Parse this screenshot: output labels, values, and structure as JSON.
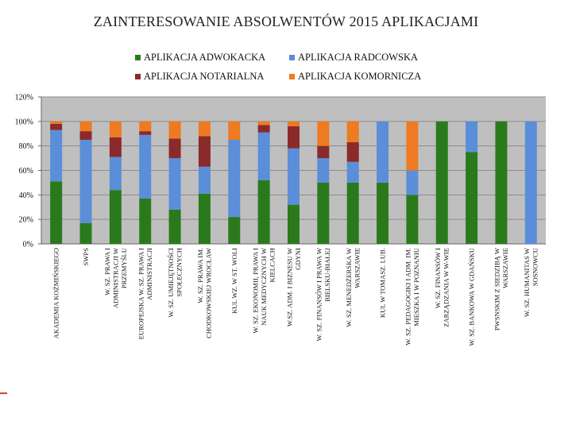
{
  "chart_data": {
    "type": "stacked-bar",
    "title": "ZAINTERESOWANIE ABSOLWENTÓW 2015 APLIKACJAMI",
    "ylim": [
      0,
      120
    ],
    "yticks": [
      "0%",
      "20%",
      "40%",
      "60%",
      "80%",
      "100%",
      "120%"
    ],
    "legend_position": "top",
    "series": [
      {
        "name": "APLIKACJA ADWOKACKA",
        "color": "#2a7a1c",
        "values": [
          51,
          17,
          44,
          37,
          28,
          41,
          22,
          52,
          32,
          50,
          50,
          50,
          40,
          100,
          75,
          100,
          0
        ]
      },
      {
        "name": "APLIKACJA RADCOWSKA",
        "color": "#5b8ed8",
        "values": [
          42,
          68,
          27,
          52,
          42,
          22,
          63,
          39,
          46,
          20,
          17,
          50,
          20,
          0,
          25,
          0,
          100
        ]
      },
      {
        "name": "APLIKACJA NOTARIALNA",
        "color": "#8b2a2a",
        "values": [
          5,
          7,
          16,
          3,
          16,
          25,
          0,
          6,
          18,
          10,
          16,
          0,
          0,
          0,
          0,
          0,
          0
        ]
      },
      {
        "name": "APLIKACJA KOMORNICZA",
        "color": "#ee7a22",
        "values": [
          2,
          8,
          13,
          8,
          14,
          12,
          15,
          3,
          4,
          20,
          17,
          0,
          40,
          0,
          0,
          0,
          0
        ]
      }
    ],
    "categories": [
      [
        "AKADEMIA KOŹMIŃSKIEGO"
      ],
      [
        "SWPS"
      ],
      [
        "W. SZ. PRAWA I",
        "ADMINISTRACJI W",
        "PRZEMYŚLU"
      ],
      [
        "EUROPEJSKA W. SZ. PRAWA I",
        "ADMINISTRACJI"
      ],
      [
        "W. SZ. UMIEJĘTNOŚCI",
        "SPOŁECZNYCH"
      ],
      [
        "W. SZ. PRAWA IM.",
        "CHODKOWSKIEJ WROCŁAW"
      ],
      [
        "KUL WZ. W ST. WOLI"
      ],
      [
        "W. SZ. EKONOMII, PRAWA I",
        "NAUK MEDYCZNYCH W",
        "KIELCACH"
      ],
      [
        "W.SZ. ADM. I BIZNESU W",
        "GDYNI"
      ],
      [
        "W. SZ. FINANSÓW I PRAWA W",
        "BIELSKU-BIAŁEJ"
      ],
      [
        "W. SZ. MENEDŻERSKA W",
        "WARSZAWIE"
      ],
      [
        "KUL W TOMASZ. LUB."
      ],
      [
        "W. SZ. PEDAGOGIKI I ADM. IM.",
        "MIESZKA I W POZNANIU"
      ],
      [
        "W. SZ. FINANSÓW I",
        "ZARZĄDZANIA W W-WIE"
      ],
      [
        "W. SZ. BANKOWA W GDAŃSKU"
      ],
      [
        "PWSNSKIM Z SIEDZIBĄ W",
        "WARSZAWIE"
      ],
      [
        "W. SZ. HUMANITAS W",
        "SOSNOWCU"
      ]
    ]
  }
}
